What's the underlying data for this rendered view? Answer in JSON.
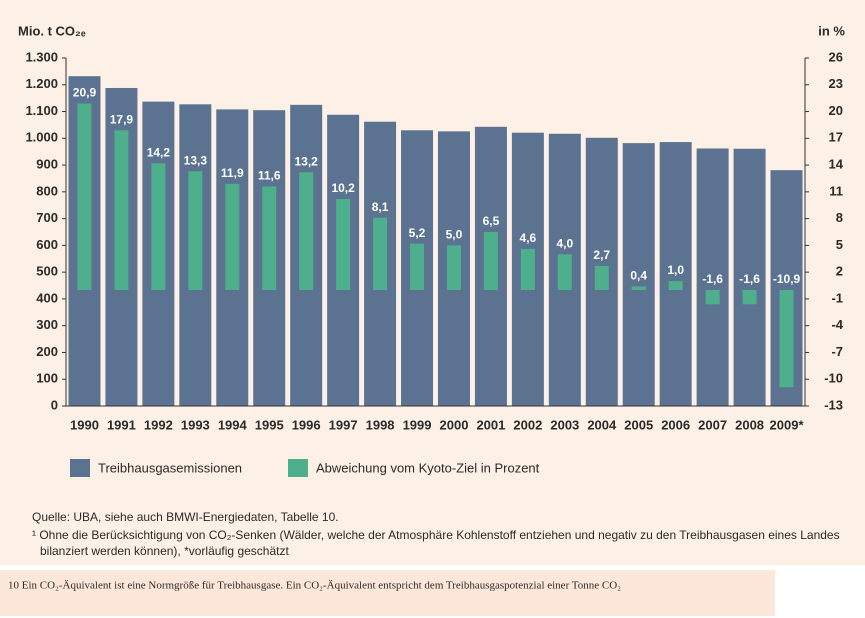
{
  "chart_data": {
    "type": "bar",
    "y_label": "Mio. t CO₂ₑ",
    "y2_label": "in %",
    "categories": [
      "1990",
      "1991",
      "1992",
      "1993",
      "1994",
      "1995",
      "1996",
      "1997",
      "1998",
      "1999",
      "2000",
      "2001",
      "2002",
      "2003",
      "2004",
      "2005",
      "2006",
      "2007",
      "2008",
      "2009*"
    ],
    "series": [
      {
        "name": "Treibhausgasemissionen",
        "color": "#5b7391",
        "values": [
          1232,
          1188,
          1137,
          1127,
          1108,
          1105,
          1125,
          1088,
          1062,
          1030,
          1026,
          1043,
          1021,
          1017,
          1002,
          982,
          986,
          962,
          961,
          881
        ]
      },
      {
        "name": "Abweichung vom Kyoto-Ziel in Prozent",
        "color": "#4daf8b",
        "axis": "y2",
        "values": [
          20.9,
          17.9,
          14.2,
          13.3,
          11.9,
          11.6,
          13.2,
          10.2,
          8.1,
          5.2,
          5.0,
          6.5,
          4.6,
          4.0,
          2.7,
          0.4,
          1.0,
          -1.6,
          -1.6,
          -10.9
        ],
        "value_labels": [
          "20,9",
          "17,9",
          "14,2",
          "13,3",
          "11,9",
          "11,6",
          "13,2",
          "10,2",
          "8,1",
          "5,2",
          "5,0",
          "6,5",
          "4,6",
          "4,0",
          "2,7",
          "0,4",
          "1,0",
          "-1,6",
          "-1,6",
          "-10,9"
        ]
      }
    ],
    "ylim": [
      0,
      1300
    ],
    "yticks": [
      0,
      100,
      200,
      300,
      400,
      500,
      600,
      700,
      800,
      900,
      {
        "value": 1000,
        "label": "1.000"
      },
      {
        "value": 1100,
        "label": "1.100"
      },
      {
        "value": 1200,
        "label": "1.200"
      },
      {
        "value": 1300,
        "label": "1.300"
      }
    ],
    "y2lim": [
      -13,
      26
    ],
    "y2ticks": [
      -13,
      -10,
      -7,
      -4,
      -1,
      2,
      5,
      8,
      11,
      14,
      17,
      20,
      23,
      26
    ],
    "legend": "bottom-left",
    "source": "Quelle: UBA, siehe auch BMWI-Energiedaten, Tabelle 10.",
    "notes": [
      "¹  Ohne die Berücksichtigung von CO₂-Senken (Wälder, welche der Atmosphäre Kohlenstoff entziehen und negativ zu den Treibhausgasen eines Landes",
      "bilanziert werden können),  *vorläufig geschätzt"
    ]
  },
  "footer": "10 Ein CO₂-Äquivalent ist eine Normgröße für Treibhausgase. Ein CO₂-Äquivalent entspricht dem Treibhausgaspotenzial einer Tonne CO₂"
}
